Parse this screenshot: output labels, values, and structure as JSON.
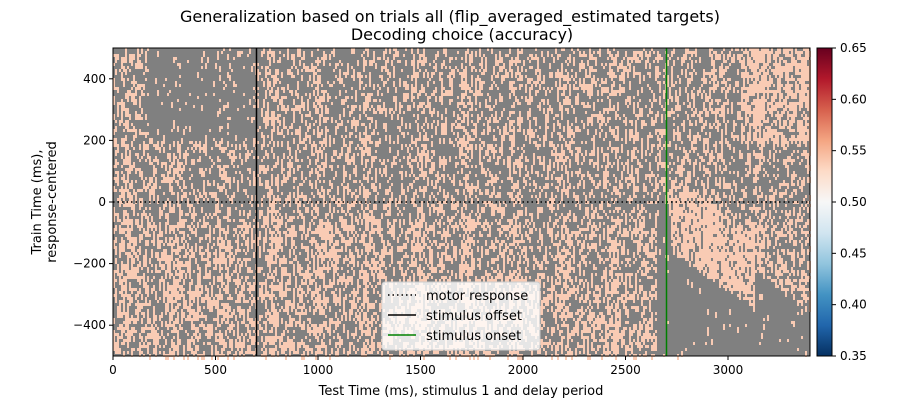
{
  "chart_data": {
    "type": "heatmap",
    "title": "Generalization based on trials all (flip_averaged_estimated targets)",
    "subtitle": "Decoding choice (accuracy)",
    "xlabel": "Test Time (ms), stimulus 1 and delay period",
    "ylabel_lines": [
      "Train Time (ms),",
      "response-centered"
    ],
    "xlim": [
      0,
      3400
    ],
    "ylim": [
      -500,
      500
    ],
    "x_ticks": [
      0,
      500,
      1000,
      1500,
      2000,
      2500,
      3000
    ],
    "y_ticks": [
      400,
      200,
      0,
      -200,
      -400
    ],
    "y_tick_labels": [
      "400",
      "200",
      "0",
      "−200",
      "−400"
    ],
    "colorbar": {
      "min": 0.35,
      "max": 0.65,
      "ticks": [
        0.65,
        0.6,
        0.55,
        0.5,
        0.45,
        0.4,
        0.35
      ],
      "tick_labels": [
        "0.65",
        "0.60",
        "0.55",
        "0.50",
        "0.45",
        "0.40",
        "0.35"
      ],
      "colormap": "RdBu_r"
    },
    "mask_color": "#808080",
    "significant_color": "#f9cbb4",
    "reference_lines": [
      {
        "orientation": "horizontal",
        "value": 0,
        "style": "dotted",
        "color": "#000000",
        "label": "motor response"
      },
      {
        "orientation": "vertical",
        "value": 700,
        "style": "solid",
        "color": "#000000",
        "label": "stimulus offset"
      },
      {
        "orientation": "vertical",
        "value": 2700,
        "style": "solid",
        "color": "#008000",
        "label": "stimulus onset"
      }
    ],
    "legend_placement": "lower-center",
    "grid": false
  }
}
